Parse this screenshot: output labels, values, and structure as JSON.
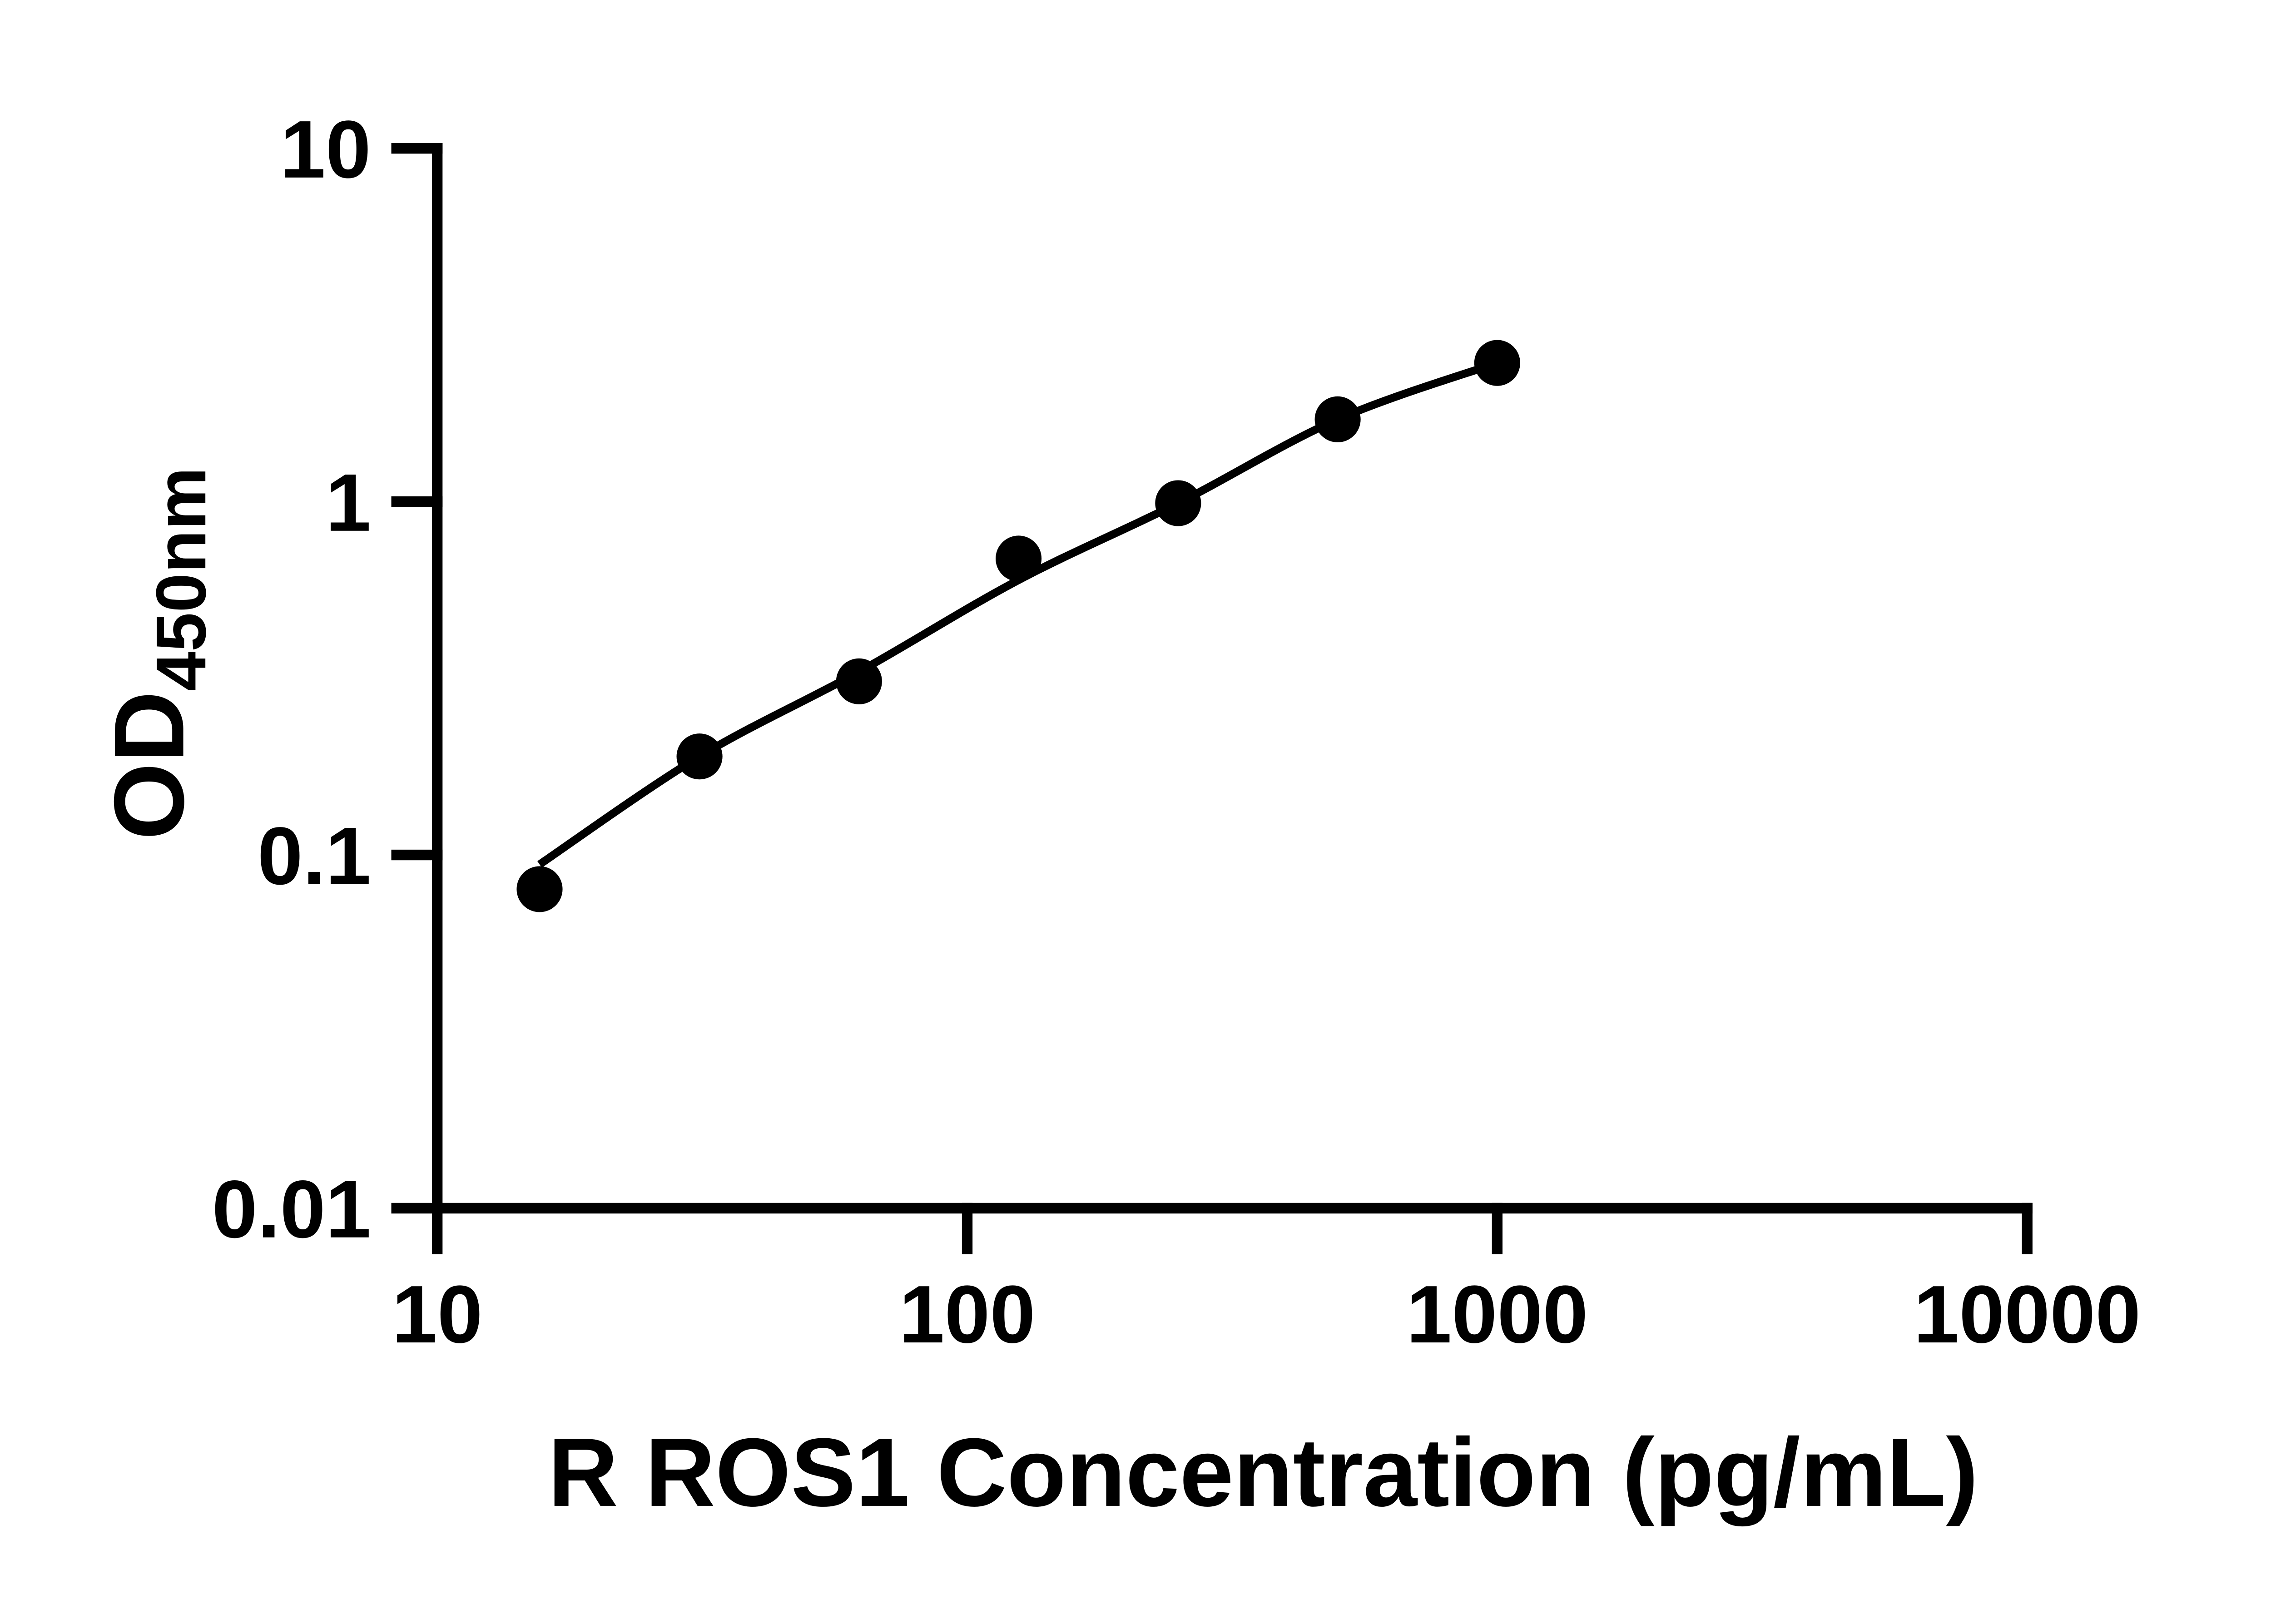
{
  "figure": {
    "background": "#ffffff"
  },
  "chart": {
    "y_axis": {
      "label_main": "OD",
      "label_sub": "450nm",
      "scale": "log",
      "ticks": [
        "10",
        "1",
        "0.1",
        "0.01"
      ],
      "tick_values": [
        10,
        1,
        0.1,
        0.01
      ],
      "range_min": 0.01,
      "range_max": 10
    },
    "x_axis": {
      "label": "R ROS1 Concentration (pg/mL)",
      "scale": "log",
      "ticks": [
        "10",
        "100",
        "1000",
        "10000"
      ],
      "tick_values": [
        10,
        100,
        1000,
        10000
      ],
      "range_min": 10,
      "range_max": 10000
    },
    "colors": {
      "ink": "#000000",
      "background": "#ffffff"
    }
  },
  "chart_data": {
    "type": "scatter",
    "title": "",
    "xlabel": "R ROS1 Concentration (pg/mL)",
    "ylabel": "OD450nm",
    "x_scale": "log",
    "y_scale": "log",
    "xlim": [
      10,
      10000
    ],
    "ylim": [
      0.01,
      10
    ],
    "grid": false,
    "legend": false,
    "series": [
      {
        "label": "OD450nm",
        "marker": "filled-circle",
        "x": [
          15.6,
          31.25,
          62.5,
          125,
          250,
          500,
          1000
        ],
        "y": [
          0.08,
          0.19,
          0.31,
          0.69,
          0.99,
          1.71,
          2.47
        ]
      }
    ],
    "fit_curve": {
      "style": "smooth-line",
      "x": [
        15.6,
        31.25,
        62.5,
        125,
        250,
        500,
        1000
      ],
      "y": [
        0.094,
        0.19,
        0.33,
        0.6,
        0.99,
        1.71,
        2.47
      ]
    }
  }
}
